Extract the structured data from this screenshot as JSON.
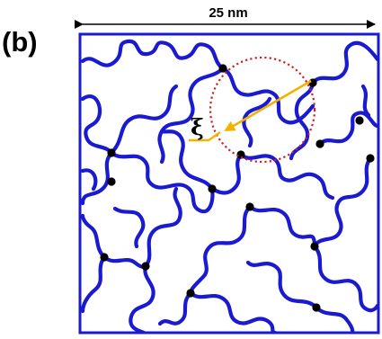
{
  "panel_label": "(b)",
  "scale_bar": {
    "label": "25 nm"
  },
  "correlation_length": {
    "symbol": "ξ"
  },
  "colors": {
    "chain": "#1a1ad0",
    "frame": "#1a1ad0",
    "crosslink": "#000000",
    "circle": "#cc1f2a",
    "arrow": "#f0b400"
  }
}
